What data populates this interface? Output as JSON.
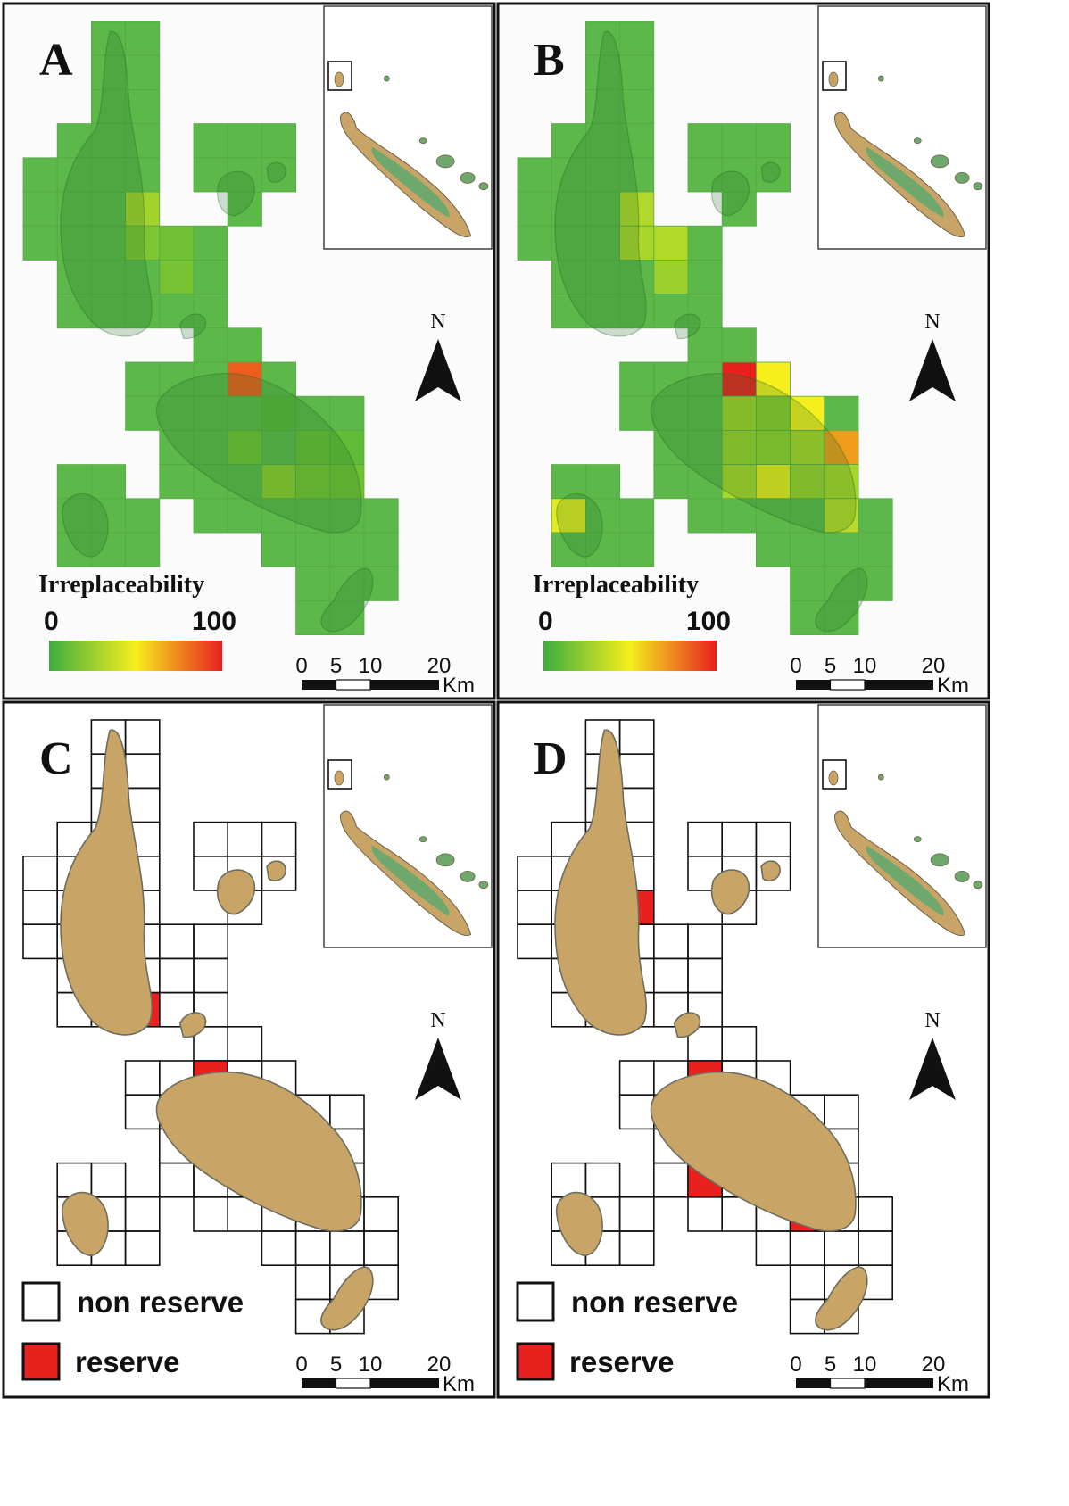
{
  "panels": [
    {
      "letter": "A",
      "kind": "irreplaceability"
    },
    {
      "letter": "B",
      "kind": "irreplaceability"
    },
    {
      "letter": "C",
      "kind": "reserve"
    },
    {
      "letter": "D",
      "kind": "reserve"
    }
  ],
  "legend": {
    "irreplaceability_title": "Irreplaceability",
    "min_label": "0",
    "max_label": "100",
    "non_reserve_label": "non reserve",
    "reserve_label": "reserve"
  },
  "scale_bar": {
    "ticks": [
      "0",
      "5",
      "10",
      "20"
    ],
    "unit": "Km"
  },
  "north_label": "N",
  "colors": {
    "grid_green": "#5cb848",
    "land_tan": "#c9a467",
    "reserve_red": "#e8201e",
    "inset_green": "#6fa86c",
    "gradient": [
      "#3cae3e",
      "#f4ef1d",
      "#e8201e"
    ]
  },
  "maps": {
    "A": {
      "irreplaceability": [
        {
          "col": 3,
          "row": 5,
          "value": 28
        },
        {
          "col": 3,
          "row": 6,
          "value": 18
        },
        {
          "col": 4,
          "row": 6,
          "value": 14
        },
        {
          "col": 4,
          "row": 7,
          "value": 16
        },
        {
          "col": 6,
          "row": 10,
          "value": 85
        },
        {
          "col": 6,
          "row": 12,
          "value": 14
        },
        {
          "col": 7,
          "row": 11,
          "value": 8
        },
        {
          "col": 7,
          "row": 13,
          "value": 22
        },
        {
          "col": 8,
          "row": 12,
          "value": 12
        },
        {
          "col": 8,
          "row": 13,
          "value": 16
        },
        {
          "col": 9,
          "row": 12,
          "value": 10
        },
        {
          "col": 9,
          "row": 13,
          "value": 14
        }
      ]
    },
    "B": {
      "irreplaceability": [
        {
          "col": 3,
          "row": 5,
          "value": 32
        },
        {
          "col": 4,
          "row": 5,
          "value": 34
        },
        {
          "col": 3,
          "row": 6,
          "value": 30
        },
        {
          "col": 4,
          "row": 6,
          "value": 32
        },
        {
          "col": 4,
          "row": 7,
          "value": 26
        },
        {
          "col": 6,
          "row": 10,
          "value": 100
        },
        {
          "col": 7,
          "row": 10,
          "value": 50
        },
        {
          "col": 6,
          "row": 11,
          "value": 28
        },
        {
          "col": 7,
          "row": 11,
          "value": 22
        },
        {
          "col": 8,
          "row": 11,
          "value": 50
        },
        {
          "col": 6,
          "row": 12,
          "value": 26
        },
        {
          "col": 7,
          "row": 12,
          "value": 24
        },
        {
          "col": 8,
          "row": 12,
          "value": 30
        },
        {
          "col": 9,
          "row": 12,
          "value": 70
        },
        {
          "col": 6,
          "row": 13,
          "value": 30
        },
        {
          "col": 7,
          "row": 13,
          "value": 48
        },
        {
          "col": 8,
          "row": 13,
          "value": 26
        },
        {
          "col": 9,
          "row": 13,
          "value": 30
        },
        {
          "col": 9,
          "row": 14,
          "value": 34
        },
        {
          "col": 1,
          "row": 14,
          "value": 46
        }
      ]
    },
    "C": {
      "reserve_cells": [
        {
          "col": 3,
          "row": 8
        },
        {
          "col": 5,
          "row": 10
        }
      ]
    },
    "D": {
      "reserve_cells": [
        {
          "col": 3,
          "row": 5
        },
        {
          "col": 2,
          "row": 6
        },
        {
          "col": 5,
          "row": 10
        },
        {
          "col": 6,
          "row": 11
        },
        {
          "col": 7,
          "row": 11
        },
        {
          "col": 6,
          "row": 12
        },
        {
          "col": 8,
          "row": 12
        },
        {
          "col": 5,
          "row": 13
        },
        {
          "col": 8,
          "row": 14
        }
      ]
    }
  }
}
